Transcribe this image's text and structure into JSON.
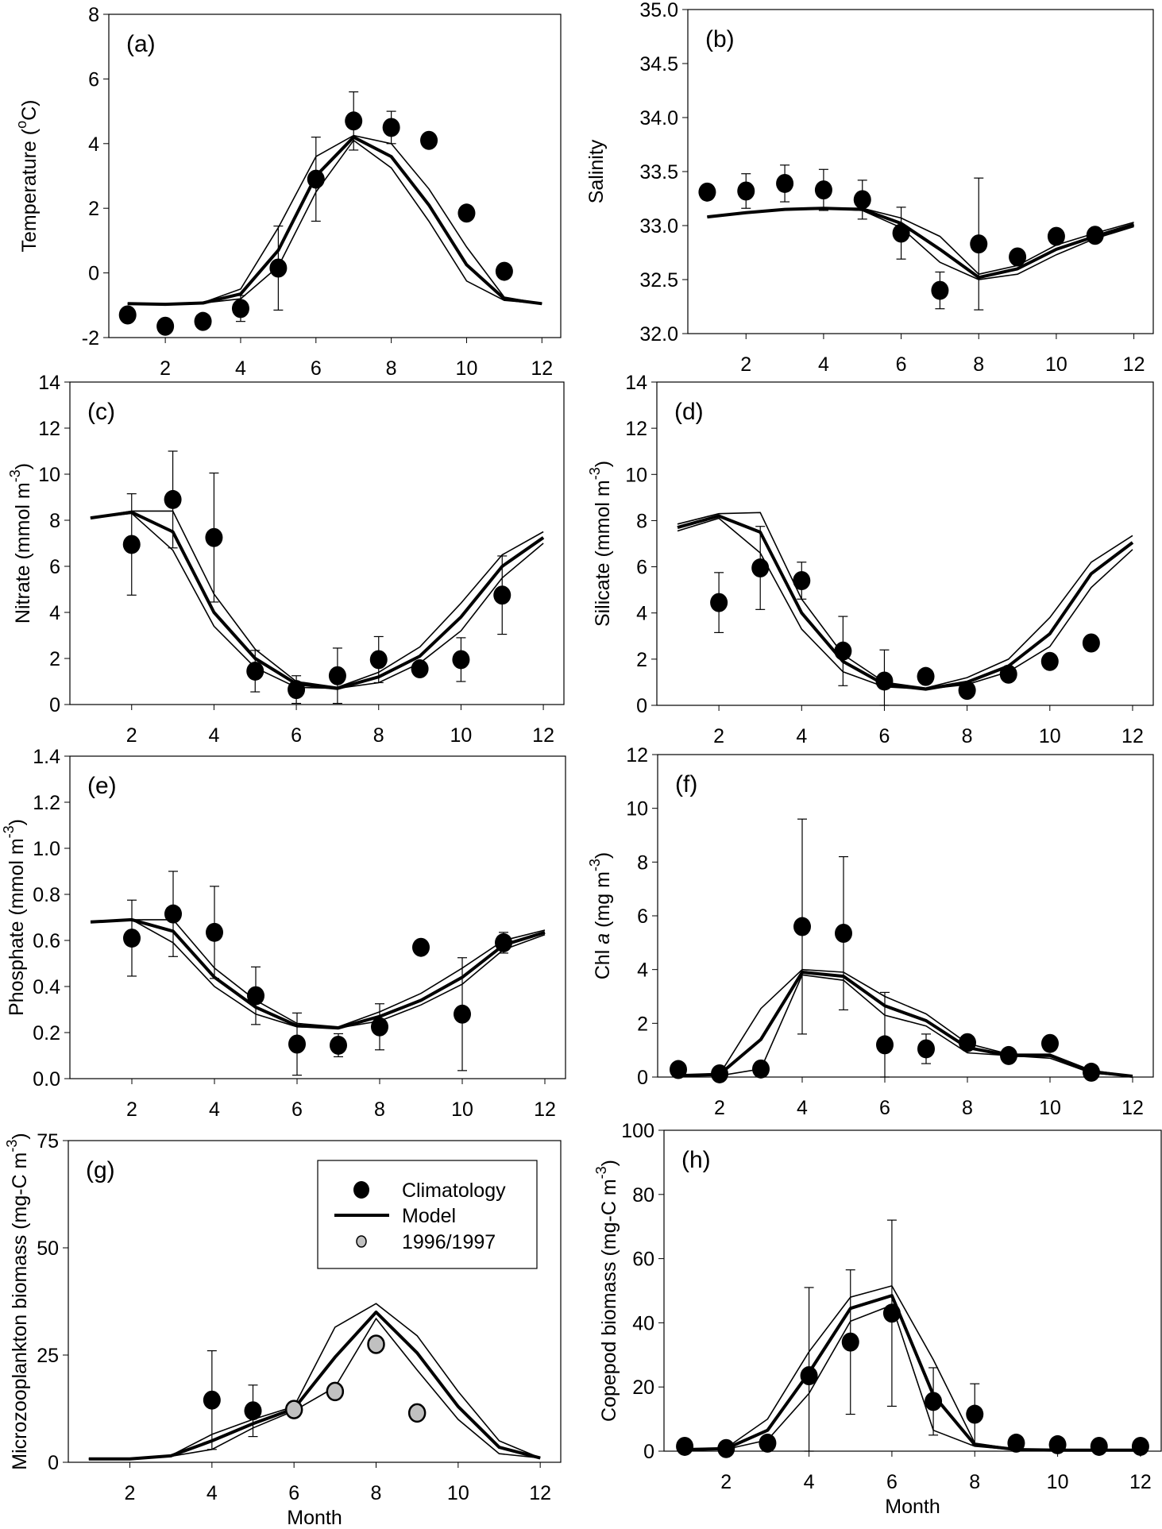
{
  "figure": {
    "x_axis_title": "Month",
    "legend": {
      "entries": [
        {
          "label": "Climatology",
          "symbol": "filled-circle",
          "color": "#000000"
        },
        {
          "label": "Model",
          "symbol": "thick-line",
          "color": "#000000"
        },
        {
          "label": "1996/1997",
          "symbol": "gray-circle",
          "color": "#c0c0c0"
        }
      ]
    }
  },
  "chart_data": [
    {
      "id": "a",
      "tag": "(a)",
      "type": "line",
      "ylabel": "Temperature (",
      "ylabel_sup": "o",
      "ylabel_unit": "C)",
      "xlim": [
        0.5,
        12.5
      ],
      "ylim": [
        -2,
        8
      ],
      "yticks": [
        -2,
        0,
        2,
        4,
        6,
        8
      ],
      "ytick_labels": [
        "-2",
        "0",
        "2",
        "4",
        "6",
        "8"
      ],
      "xticks": [
        2,
        4,
        6,
        8,
        10,
        12
      ],
      "xtick_labels": [
        "2",
        "4",
        "6",
        "8",
        "10",
        "12"
      ],
      "show_xlabel": false,
      "model": {
        "x": [
          1,
          2,
          3,
          4,
          5,
          6,
          7,
          8,
          9,
          10,
          11,
          12
        ],
        "mean": [
          -0.95,
          -0.97,
          -0.93,
          -0.65,
          0.7,
          3.0,
          4.2,
          3.6,
          2.1,
          0.25,
          -0.8,
          -0.95
        ],
        "upper": [
          -0.95,
          -0.97,
          -0.92,
          -0.5,
          1.4,
          3.6,
          4.25,
          4.0,
          2.6,
          0.8,
          -0.75,
          -0.95
        ],
        "lower": [
          -0.95,
          -0.97,
          -0.93,
          -0.8,
          0.2,
          2.5,
          4.1,
          3.25,
          1.6,
          -0.25,
          -0.85,
          -0.95
        ]
      },
      "climatology": {
        "x": [
          1,
          2,
          3,
          4,
          5,
          6,
          7,
          8,
          9,
          10,
          11
        ],
        "y": [
          -1.3,
          -1.65,
          -1.5,
          -1.1,
          0.15,
          2.9,
          4.7,
          4.5,
          4.1,
          1.85,
          0.05
        ],
        "err": [
          null,
          null,
          null,
          0.4,
          1.3,
          1.3,
          0.9,
          0.5,
          null,
          null,
          null
        ]
      },
      "obs_1996_1997": null
    },
    {
      "id": "b",
      "tag": "(b)",
      "type": "line",
      "ylabel": "Salinity",
      "ylabel_sup": "",
      "ylabel_unit": "",
      "xlim": [
        0.5,
        12.5
      ],
      "ylim": [
        32.0,
        35.0
      ],
      "yticks": [
        32.0,
        32.5,
        33.0,
        33.5,
        34.0,
        34.5,
        35.0
      ],
      "ytick_labels": [
        "32.0",
        "32.5",
        "33.0",
        "33.5",
        "34.0",
        "34.5",
        "35.0"
      ],
      "xticks": [
        2,
        4,
        6,
        8,
        10,
        12
      ],
      "xtick_labels": [
        "2",
        "4",
        "6",
        "8",
        "10",
        "12"
      ],
      "show_xlabel": false,
      "model": {
        "x": [
          1,
          2,
          3,
          4,
          5,
          6,
          7,
          8,
          9,
          10,
          11,
          12
        ],
        "mean": [
          33.08,
          33.12,
          33.15,
          33.16,
          33.15,
          33.02,
          32.78,
          32.52,
          32.6,
          32.78,
          32.9,
          33.01
        ],
        "upper": [
          33.08,
          33.12,
          33.15,
          33.16,
          33.16,
          33.07,
          32.9,
          32.55,
          32.63,
          32.82,
          32.93,
          33.03
        ],
        "lower": [
          33.08,
          33.12,
          33.15,
          33.16,
          33.14,
          32.98,
          32.66,
          32.5,
          32.55,
          32.73,
          32.88,
          32.99
        ]
      },
      "climatology": {
        "x": [
          1,
          2,
          3,
          4,
          5,
          6,
          7,
          8,
          9,
          10,
          11
        ],
        "y": [
          33.31,
          33.32,
          33.39,
          33.33,
          33.24,
          32.93,
          32.4,
          32.83,
          32.71,
          32.9,
          32.91
        ],
        "err": [
          null,
          0.16,
          0.17,
          0.19,
          0.18,
          0.24,
          0.17,
          0.61,
          null,
          null,
          null
        ]
      },
      "obs_1996_1997": null
    },
    {
      "id": "c",
      "tag": "(c)",
      "type": "line",
      "ylabel": "Nitrate (mmol m",
      "ylabel_sup": "-3",
      "ylabel_unit": ")",
      "xlim": [
        0.5,
        12.5
      ],
      "ylim": [
        0,
        14
      ],
      "yticks": [
        0,
        2,
        4,
        6,
        8,
        10,
        12,
        14
      ],
      "ytick_labels": [
        "0",
        "2",
        "4",
        "6",
        "8",
        "10",
        "12",
        "14"
      ],
      "xticks": [
        2,
        4,
        6,
        8,
        10,
        12
      ],
      "xtick_labels": [
        "2",
        "4",
        "6",
        "8",
        "10",
        "12"
      ],
      "show_xlabel": false,
      "model": {
        "x": [
          1,
          2,
          3,
          4,
          5,
          6,
          7,
          8,
          9,
          10,
          11,
          12
        ],
        "mean": [
          8.1,
          8.35,
          7.5,
          4.0,
          2.0,
          0.9,
          0.7,
          1.2,
          2.1,
          3.8,
          6.0,
          7.25
        ],
        "upper": [
          8.1,
          8.4,
          8.4,
          4.8,
          2.4,
          1.0,
          0.75,
          1.4,
          2.5,
          4.4,
          6.5,
          7.5
        ],
        "lower": [
          8.1,
          8.3,
          6.7,
          3.4,
          1.6,
          0.75,
          0.7,
          0.95,
          1.8,
          3.2,
          5.5,
          7.0
        ]
      },
      "climatology": {
        "x": [
          2,
          3,
          4,
          5,
          6,
          7,
          8,
          9,
          10,
          11
        ],
        "y": [
          6.95,
          8.9,
          7.25,
          1.45,
          0.65,
          1.25,
          1.95,
          1.55,
          1.95,
          4.75
        ],
        "err": [
          2.2,
          2.1,
          2.8,
          0.9,
          0.6,
          1.2,
          1.0,
          null,
          0.95,
          1.7
        ]
      },
      "obs_1996_1997": null
    },
    {
      "id": "d",
      "tag": "(d)",
      "type": "line",
      "ylabel": "Silicate (mmol m",
      "ylabel_sup": "-3",
      "ylabel_unit": ")",
      "xlim": [
        0.5,
        12.5
      ],
      "ylim": [
        0,
        14
      ],
      "yticks": [
        0,
        2,
        4,
        6,
        8,
        10,
        12,
        14
      ],
      "ytick_labels": [
        "0",
        "2",
        "4",
        "6",
        "8",
        "10",
        "12",
        "14"
      ],
      "xticks": [
        2,
        4,
        6,
        8,
        10,
        12
      ],
      "xtick_labels": [
        "2",
        "4",
        "6",
        "8",
        "10",
        "12"
      ],
      "show_xlabel": false,
      "model": {
        "x": [
          1,
          2,
          3,
          4,
          5,
          6,
          7,
          8,
          9,
          10,
          11,
          12
        ],
        "mean": [
          7.7,
          8.2,
          7.5,
          4.0,
          1.9,
          0.9,
          0.7,
          1.0,
          1.7,
          3.1,
          5.7,
          7.05
        ],
        "upper": [
          7.85,
          8.3,
          8.35,
          4.6,
          2.2,
          1.0,
          0.75,
          1.2,
          2.0,
          3.8,
          6.2,
          7.35
        ],
        "lower": [
          7.55,
          8.1,
          6.6,
          3.3,
          1.45,
          0.8,
          0.7,
          0.9,
          1.45,
          2.55,
          5.1,
          6.75
        ]
      },
      "climatology": {
        "x": [
          2,
          3,
          4,
          5,
          6,
          7,
          8,
          9,
          10,
          11
        ],
        "y": [
          4.45,
          5.95,
          5.4,
          2.35,
          1.05,
          1.25,
          0.65,
          1.35,
          1.9,
          2.7
        ],
        "err": [
          1.3,
          1.8,
          0.8,
          1.5,
          1.35,
          null,
          null,
          null,
          null,
          null
        ]
      },
      "obs_1996_1997": null
    },
    {
      "id": "e",
      "tag": "(e)",
      "type": "line",
      "ylabel": "Phosphate (mmol m",
      "ylabel_sup": "-3",
      "ylabel_unit": ")",
      "xlim": [
        0.5,
        12.5
      ],
      "ylim": [
        0,
        1.4
      ],
      "yticks": [
        0,
        0.2,
        0.4,
        0.6,
        0.8,
        1.0,
        1.2,
        1.4
      ],
      "ytick_labels": [
        "0.0",
        "0.2",
        "0.4",
        "0.6",
        "0.8",
        "1.0",
        "1.2",
        "1.4"
      ],
      "xticks": [
        2,
        4,
        6,
        8,
        10,
        12
      ],
      "xtick_labels": [
        "2",
        "4",
        "6",
        "8",
        "10",
        "12"
      ],
      "show_xlabel": false,
      "model": {
        "x": [
          1,
          2,
          3,
          4,
          5,
          6,
          7,
          8,
          9,
          10,
          11,
          12
        ],
        "mean": [
          0.68,
          0.69,
          0.64,
          0.44,
          0.31,
          0.23,
          0.22,
          0.27,
          0.34,
          0.44,
          0.58,
          0.635
        ],
        "upper": [
          0.68,
          0.69,
          0.69,
          0.48,
          0.34,
          0.24,
          0.225,
          0.29,
          0.37,
          0.48,
          0.6,
          0.645
        ],
        "lower": [
          0.68,
          0.69,
          0.59,
          0.4,
          0.28,
          0.225,
          0.22,
          0.25,
          0.32,
          0.41,
          0.56,
          0.625
        ]
      },
      "climatology": {
        "x": [
          2,
          3,
          4,
          5,
          6,
          7,
          8,
          9,
          10,
          11
        ],
        "y": [
          0.61,
          0.715,
          0.635,
          0.36,
          0.15,
          0.145,
          0.225,
          0.57,
          0.28,
          0.59
        ],
        "err": [
          0.165,
          0.185,
          0.2,
          0.125,
          0.135,
          0.05,
          0.1,
          null,
          0.245,
          0.045
        ]
      },
      "obs_1996_1997": null
    },
    {
      "id": "f",
      "tag": "(f)",
      "type": "line",
      "ylabel": "Chl ",
      "ylabel_italic": "a",
      "ylabel_sup": "-3",
      "ylabel_unit": ")",
      "ylabel_mid": " (mg m",
      "xlim": [
        0.5,
        12.5
      ],
      "ylim": [
        0,
        12
      ],
      "yticks": [
        0,
        2,
        4,
        6,
        8,
        10,
        12
      ],
      "ytick_labels": [
        "0",
        "2",
        "4",
        "6",
        "8",
        "10",
        "12"
      ],
      "xticks": [
        2,
        4,
        6,
        8,
        10,
        12
      ],
      "xtick_labels": [
        "2",
        "4",
        "6",
        "8",
        "10",
        "12"
      ],
      "show_xlabel": false,
      "model": {
        "x": [
          1,
          2,
          3,
          4,
          5,
          6,
          7,
          8,
          9,
          10,
          11,
          12
        ],
        "mean": [
          0.05,
          0.1,
          1.4,
          3.9,
          3.75,
          2.65,
          2.1,
          1.1,
          0.8,
          0.8,
          0.2,
          0.03
        ],
        "upper": [
          0.05,
          0.1,
          2.55,
          4.0,
          3.9,
          3.0,
          2.35,
          1.25,
          0.85,
          0.85,
          0.25,
          0.04
        ],
        "lower": [
          0.05,
          0.05,
          0.3,
          3.8,
          3.6,
          2.3,
          1.9,
          0.9,
          0.8,
          0.7,
          0.15,
          0.02
        ]
      },
      "climatology": {
        "x": [
          1,
          2,
          3,
          4,
          5,
          6,
          7,
          8,
          9,
          10,
          11
        ],
        "y": [
          0.28,
          0.12,
          0.3,
          5.6,
          5.35,
          1.2,
          1.05,
          1.28,
          0.8,
          1.25,
          0.18
        ],
        "err": [
          null,
          null,
          null,
          4.0,
          2.85,
          1.95,
          0.55,
          null,
          null,
          null,
          null
        ]
      },
      "obs_1996_1997": null
    },
    {
      "id": "g",
      "tag": "(g)",
      "type": "line",
      "ylabel": "Microzooplankton biomass (mg-C m",
      "ylabel_sup": "-3",
      "ylabel_unit": ")",
      "xlim": [
        0.5,
        12.5
      ],
      "ylim": [
        0,
        75
      ],
      "yticks": [
        0,
        25,
        50,
        75
      ],
      "ytick_labels": [
        "0",
        "25",
        "50",
        "75"
      ],
      "xticks": [
        2,
        4,
        6,
        8,
        10,
        12
      ],
      "xtick_labels": [
        "2",
        "4",
        "6",
        "8",
        "10",
        "12"
      ],
      "show_xlabel": true,
      "model": {
        "x": [
          1,
          2,
          3,
          4,
          5,
          6,
          7,
          8,
          9,
          10,
          11,
          12
        ],
        "mean": [
          0.8,
          0.8,
          1.5,
          5.0,
          9.0,
          12.5,
          24.5,
          35.0,
          25.5,
          13.0,
          3.5,
          1.0
        ],
        "upper": [
          0.8,
          0.8,
          1.6,
          6.5,
          10.0,
          13.0,
          31.5,
          37.0,
          29.5,
          16.5,
          5.0,
          1.0
        ],
        "lower": [
          0.8,
          0.8,
          1.4,
          3.0,
          8.0,
          12.0,
          17.5,
          33.5,
          21.5,
          10.0,
          2.0,
          1.0
        ]
      },
      "climatology": {
        "x": [
          4,
          5
        ],
        "y": [
          14.5,
          12.0
        ],
        "err": [
          11.5,
          6.0
        ]
      },
      "obs_1996_1997": {
        "x": [
          6,
          7,
          8,
          9
        ],
        "y": [
          12.3,
          16.5,
          27.5,
          11.5
        ]
      },
      "legend_position": "top-right"
    },
    {
      "id": "h",
      "tag": "(h)",
      "type": "line",
      "ylabel": "Copepod biomass (mg-C m",
      "ylabel_sup": "-3",
      "ylabel_unit": ")",
      "xlim": [
        0.5,
        12.5
      ],
      "ylim": [
        0,
        100
      ],
      "yticks": [
        0,
        20,
        40,
        60,
        80,
        100
      ],
      "ytick_labels": [
        "0",
        "20",
        "40",
        "60",
        "80",
        "100"
      ],
      "xticks": [
        2,
        4,
        6,
        8,
        10,
        12
      ],
      "xtick_labels": [
        "2",
        "4",
        "6",
        "8",
        "10",
        "12"
      ],
      "show_xlabel": true,
      "model": {
        "x": [
          1,
          2,
          3,
          4,
          5,
          6,
          7,
          8,
          9,
          10,
          11,
          12
        ],
        "mean": [
          0.5,
          0.8,
          6.5,
          24.5,
          44.5,
          48.5,
          17.5,
          2.0,
          0.5,
          0.3,
          0.3,
          0.3
        ],
        "upper": [
          0.5,
          1.0,
          10.0,
          31.0,
          48.0,
          51.5,
          28.5,
          2.5,
          0.6,
          0.3,
          0.3,
          0.3
        ],
        "lower": [
          0.5,
          0.6,
          3.5,
          18.0,
          40.5,
          45.5,
          6.5,
          1.5,
          0.4,
          0.3,
          0.3,
          0.3
        ]
      },
      "climatology": {
        "x": [
          1,
          2,
          3,
          4,
          5,
          6,
          7,
          8,
          9,
          10,
          11,
          12
        ],
        "y": [
          1.5,
          0.8,
          2.5,
          23.5,
          34.0,
          43.0,
          15.5,
          11.5,
          2.5,
          2.0,
          1.5,
          1.5
        ],
        "err": [
          null,
          null,
          null,
          27.5,
          22.5,
          29.0,
          10.5,
          9.5,
          null,
          null,
          null,
          null
        ]
      },
      "obs_1996_1997": null
    }
  ]
}
